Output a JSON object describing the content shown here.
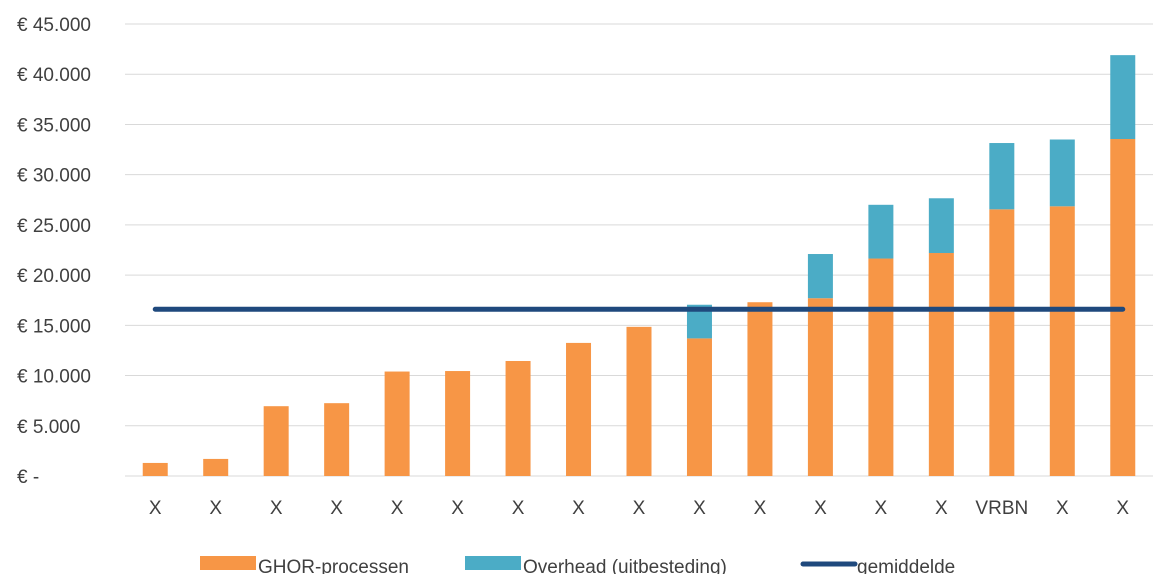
{
  "chart_data": {
    "type": "bar",
    "stacked": true,
    "categories": [
      "X",
      "X",
      "X",
      "X",
      "X",
      "X",
      "X",
      "X",
      "X",
      "X",
      "X",
      "X",
      "X",
      "X",
      "VRBN",
      "X",
      "X"
    ],
    "series": [
      {
        "name": "GHOR-processen",
        "color": "#F79646",
        "values": [
          1300,
          1700,
          6950,
          7250,
          10400,
          10450,
          11450,
          13250,
          14850,
          13700,
          17300,
          17700,
          21650,
          22200,
          26550,
          26850,
          33550
        ]
      },
      {
        "name": "Overhead (uitbesteding)",
        "color": "#4BACC6",
        "values": [
          0,
          0,
          0,
          0,
          0,
          0,
          0,
          0,
          0,
          3350,
          0,
          4400,
          5350,
          5450,
          6600,
          6650,
          8350
        ]
      }
    ],
    "average": {
      "name": "gemiddelde",
      "value": 16600,
      "color": "#1F497D"
    },
    "ylim": [
      0,
      45000
    ],
    "yticks": [
      {
        "value": 0,
        "label": "€ -"
      },
      {
        "value": 5000,
        "label": "€ 5.000"
      },
      {
        "value": 10000,
        "label": "€ 10.000"
      },
      {
        "value": 15000,
        "label": "€ 15.000"
      },
      {
        "value": 20000,
        "label": "€ 20.000"
      },
      {
        "value": 25000,
        "label": "€ 25.000"
      },
      {
        "value": 30000,
        "label": "€ 30.000"
      },
      {
        "value": 35000,
        "label": "€ 35.000"
      },
      {
        "value": 40000,
        "label": "€ 40.000"
      },
      {
        "value": 45000,
        "label": "€ 45.000"
      }
    ],
    "grid": true,
    "legend_position": "bottom",
    "title": "",
    "xlabel": "",
    "ylabel": ""
  }
}
